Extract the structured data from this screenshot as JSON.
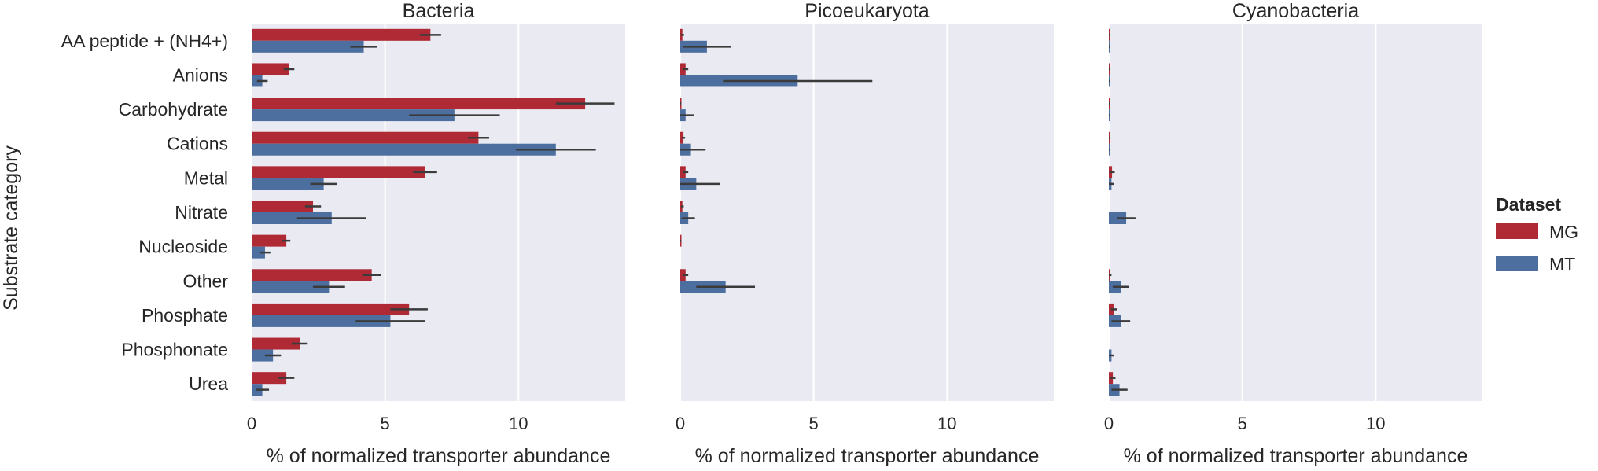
{
  "figure": {
    "ylabel": "Substrate category",
    "legend": {
      "title": "Dataset",
      "position": "right",
      "entries": [
        {
          "label": "MG",
          "color": "#b02a35"
        },
        {
          "label": "MT",
          "color": "#4c6fa0"
        }
      ]
    }
  },
  "chart_data": [
    {
      "type": "bar",
      "orientation": "horizontal",
      "title": "Bacteria",
      "xlabel": "% of normalized transporter abundance",
      "xlim": [
        0,
        14
      ],
      "xticks": [
        0,
        5,
        10
      ],
      "grid": true,
      "categories": [
        "AA peptide + (NH4+)",
        "Anions",
        "Carbohydrate",
        "Cations",
        "Metal",
        "Nitrate",
        "Nucleoside",
        "Other",
        "Phosphate",
        "Phosphonate",
        "Urea"
      ],
      "series": [
        {
          "name": "MG",
          "values": [
            6.7,
            1.4,
            12.5,
            8.5,
            6.5,
            2.3,
            1.3,
            4.5,
            5.9,
            1.8,
            1.3
          ],
          "error": [
            0.4,
            0.2,
            1.1,
            0.4,
            0.45,
            0.3,
            0.15,
            0.35,
            0.7,
            0.3,
            0.3
          ]
        },
        {
          "name": "MT",
          "values": [
            4.2,
            0.4,
            7.6,
            11.4,
            2.7,
            3.0,
            0.5,
            2.9,
            5.2,
            0.8,
            0.4
          ],
          "error": [
            0.5,
            0.2,
            1.7,
            1.5,
            0.5,
            1.3,
            0.2,
            0.6,
            1.3,
            0.3,
            0.25
          ]
        }
      ]
    },
    {
      "type": "bar",
      "orientation": "horizontal",
      "title": "Picoeukaryota",
      "xlabel": "% of normalized transporter abundance",
      "xlim": [
        0,
        14
      ],
      "xticks": [
        0,
        5,
        10
      ],
      "grid": true,
      "categories": [
        "AA peptide + (NH4+)",
        "Anions",
        "Carbohydrate",
        "Cations",
        "Metal",
        "Nitrate",
        "Nucleoside",
        "Other",
        "Phosphate",
        "Phosphonate",
        "Urea"
      ],
      "series": [
        {
          "name": "MG",
          "values": [
            0.08,
            0.2,
            0.02,
            0.12,
            0.2,
            0.08,
            0.02,
            0.2,
            0.0,
            0.0,
            0.0
          ],
          "error": [
            0.06,
            0.1,
            0.02,
            0.06,
            0.1,
            0.05,
            0.02,
            0.1,
            0.0,
            0.0,
            0.0
          ]
        },
        {
          "name": "MT",
          "values": [
            1.0,
            4.4,
            0.2,
            0.4,
            0.6,
            0.3,
            0.0,
            1.7,
            0.0,
            0.0,
            0.0
          ],
          "error": [
            0.9,
            2.8,
            0.3,
            0.55,
            0.9,
            0.25,
            0.0,
            1.1,
            0.0,
            0.0,
            0.0
          ]
        }
      ]
    },
    {
      "type": "bar",
      "orientation": "horizontal",
      "title": "Cyanobacteria",
      "xlabel": "% of normalized transporter abundance",
      "xlim": [
        0,
        14
      ],
      "xticks": [
        0,
        5,
        10
      ],
      "grid": true,
      "categories": [
        "AA peptide + (NH4+)",
        "Anions",
        "Carbohydrate",
        "Cations",
        "Metal",
        "Nitrate",
        "Nucleoside",
        "Other",
        "Phosphate",
        "Phosphonate",
        "Urea"
      ],
      "series": [
        {
          "name": "MG",
          "values": [
            0.02,
            0.02,
            0.02,
            0.02,
            0.12,
            0.0,
            0.0,
            0.05,
            0.2,
            0.0,
            0.15
          ],
          "error": [
            0.02,
            0.02,
            0.02,
            0.02,
            0.1,
            0.0,
            0.0,
            0.05,
            0.12,
            0.0,
            0.1
          ]
        },
        {
          "name": "MT",
          "values": [
            0.02,
            0.02,
            0.02,
            0.02,
            0.1,
            0.65,
            0.0,
            0.45,
            0.45,
            0.1,
            0.4
          ],
          "error": [
            0.02,
            0.02,
            0.02,
            0.02,
            0.1,
            0.35,
            0.0,
            0.3,
            0.35,
            0.1,
            0.3
          ]
        }
      ]
    }
  ]
}
